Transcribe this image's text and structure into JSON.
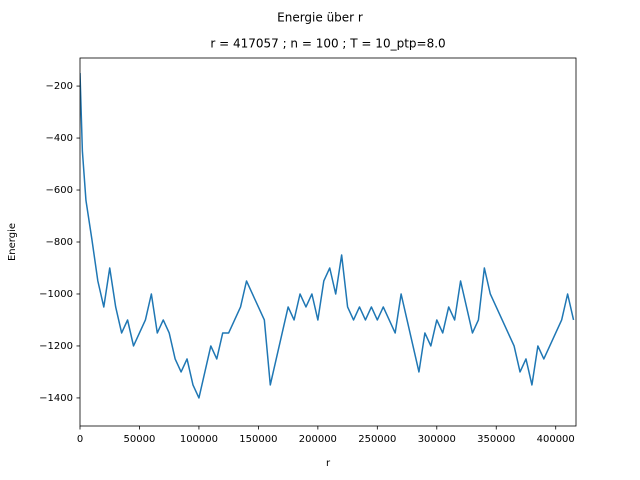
{
  "chart_data": {
    "type": "line",
    "suptitle": "Energie über r",
    "title": "r = 417057 ; n = 100 ; T = 10_ptp=8.0",
    "x_label": "r",
    "y_label": "Energie",
    "x": [
      0,
      2000,
      5000,
      10000,
      15000,
      20000,
      25000,
      30000,
      35000,
      40000,
      45000,
      50000,
      55000,
      60000,
      65000,
      70000,
      75000,
      80000,
      85000,
      90000,
      95000,
      100000,
      105000,
      110000,
      115000,
      120000,
      125000,
      130000,
      135000,
      140000,
      145000,
      150000,
      155000,
      160000,
      165000,
      170000,
      175000,
      180000,
      185000,
      190000,
      195000,
      200000,
      205000,
      210000,
      215000,
      220000,
      225000,
      230000,
      235000,
      240000,
      245000,
      250000,
      255000,
      260000,
      265000,
      270000,
      275000,
      280000,
      285000,
      290000,
      295000,
      300000,
      305000,
      310000,
      315000,
      320000,
      325000,
      330000,
      335000,
      340000,
      345000,
      350000,
      355000,
      360000,
      365000,
      370000,
      375000,
      380000,
      385000,
      390000,
      395000,
      400000,
      405000,
      410000,
      415000
    ],
    "series": [
      {
        "name": "Energie",
        "color": "#1f77b4",
        "values": [
          -150,
          -450,
          -640,
          -790,
          -950,
          -1050,
          -900,
          -1050,
          -1150,
          -1100,
          -1200,
          -1150,
          -1100,
          -1000,
          -1150,
          -1100,
          -1150,
          -1250,
          -1300,
          -1250,
          -1350,
          -1400,
          -1300,
          -1200,
          -1250,
          -1150,
          -1150,
          -1100,
          -1050,
          -950,
          -1000,
          -1050,
          -1100,
          -1350,
          -1250,
          -1150,
          -1050,
          -1100,
          -1000,
          -1050,
          -1000,
          -1100,
          -950,
          -900,
          -1000,
          -850,
          -1050,
          -1100,
          -1050,
          -1100,
          -1050,
          -1100,
          -1050,
          -1100,
          -1150,
          -1000,
          -1100,
          -1200,
          -1300,
          -1150,
          -1200,
          -1100,
          -1150,
          -1050,
          -1100,
          -950,
          -1050,
          -1150,
          -1100,
          -900,
          -1000,
          -1050,
          -1100,
          -1150,
          -1200,
          -1300,
          -1250,
          -1350,
          -1200,
          -1250,
          -1200,
          -1150,
          -1100,
          -1000,
          -1100
        ]
      }
    ],
    "xlim": [
      0,
      417057
    ],
    "ylim": [
      -1508,
      -92
    ],
    "xticks": [
      0,
      50000,
      100000,
      150000,
      200000,
      250000,
      300000,
      350000,
      400000
    ],
    "yticks": [
      {
        "value": -1400,
        "label": "−1400"
      },
      {
        "value": -1200,
        "label": "−1200"
      },
      {
        "value": -1000,
        "label": "−1000"
      },
      {
        "value": -800,
        "label": "−800"
      },
      {
        "value": -600,
        "label": "−600"
      },
      {
        "value": -400,
        "label": "−400"
      },
      {
        "value": -200,
        "label": "−200"
      }
    ],
    "grid": false
  }
}
